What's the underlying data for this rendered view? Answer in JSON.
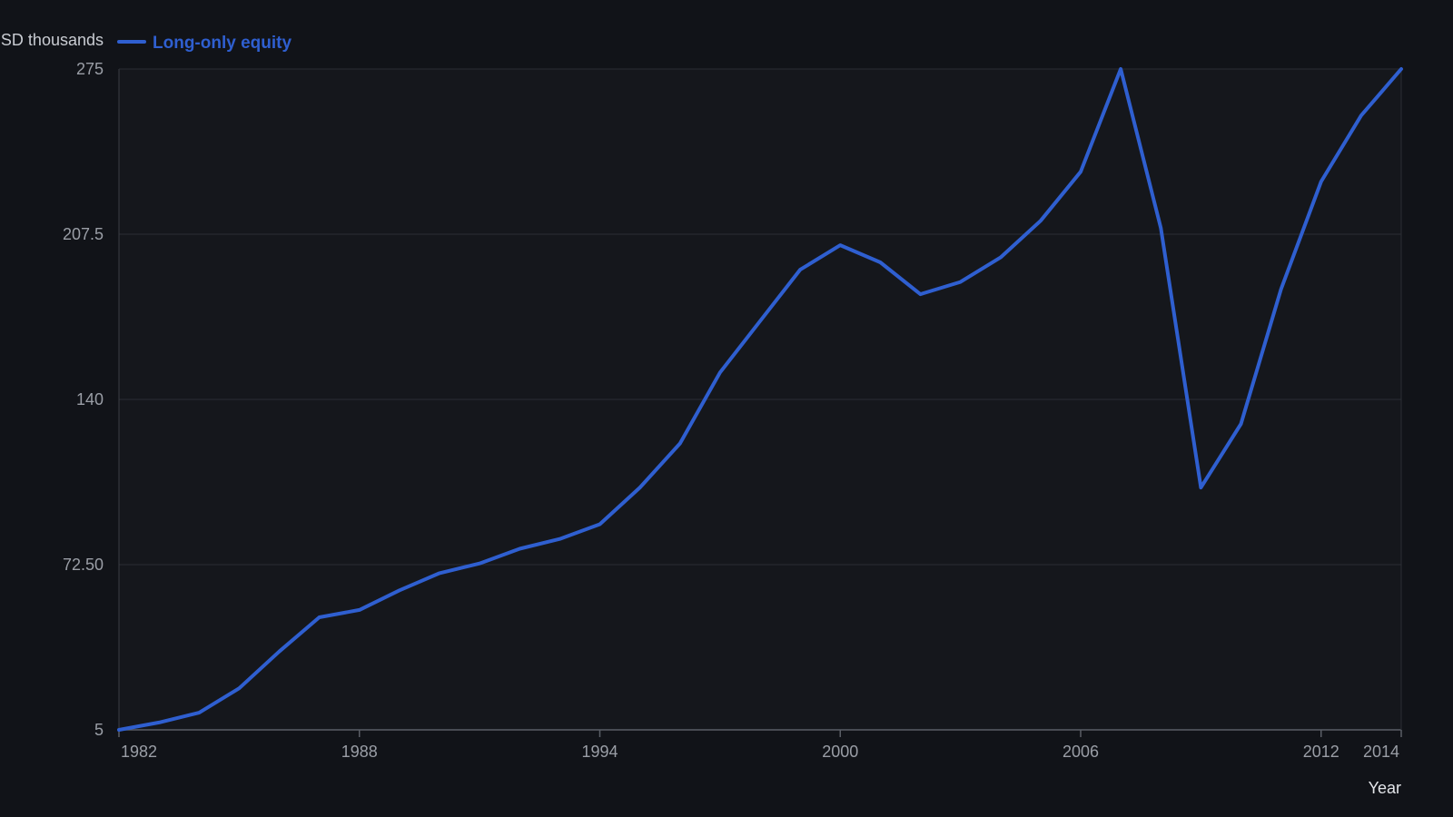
{
  "chart_data": {
    "type": "line",
    "y_unit_label": "USD thousands",
    "xlabel": "Year",
    "ylabel": "",
    "title": "",
    "xlim": [
      1982,
      2014
    ],
    "ylim": [
      5,
      275
    ],
    "x_ticks": [
      1982,
      1988,
      1994,
      2000,
      2006,
      2012,
      2014
    ],
    "y_ticks": [
      "5",
      "72.50",
      "140",
      "207.5",
      "275"
    ],
    "grid": "horizontal",
    "legend_position": "top-left",
    "series": [
      {
        "name": "Long-only equity",
        "color": "#2f5fd0",
        "x": [
          1982,
          1983,
          1984,
          1985,
          1986,
          1987,
          1988,
          1989,
          1990,
          1991,
          1992,
          1993,
          1994,
          1995,
          1996,
          1997,
          1998,
          1999,
          2000,
          2001,
          2002,
          2003,
          2004,
          2005,
          2006,
          2007,
          2008,
          2009,
          2010,
          2011,
          2012,
          2013,
          2014
        ],
        "values": [
          5,
          8,
          12,
          22,
          37,
          51,
          54,
          62,
          69,
          73,
          79,
          83,
          89,
          104,
          122,
          151,
          172,
          193,
          203,
          196,
          183,
          188,
          198,
          213,
          233,
          275,
          210,
          104,
          130,
          185,
          229,
          256,
          275
        ]
      }
    ]
  }
}
